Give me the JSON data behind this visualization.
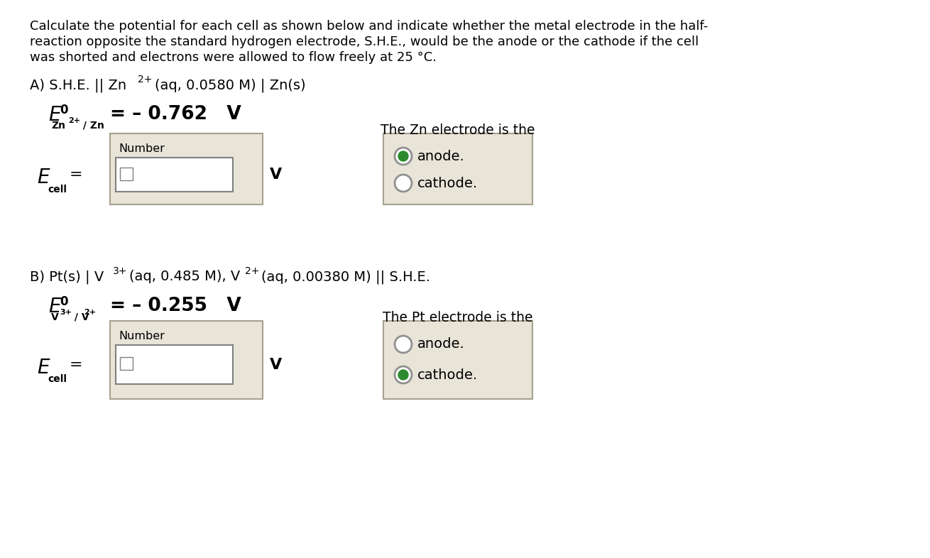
{
  "bg_color": "#ffffff",
  "text_color": "#000000",
  "box_bg": "#e8e4d8",
  "box_inner_bg": "#ffffff",
  "radio_box_bg": "#e8e4d8",
  "selected_color": "#2d8a2d",
  "number_label": "Number",
  "V_label": "V",
  "header_line1": "Calculate the potential for each cell as shown below and indicate whether the metal electrode in the half-",
  "header_line2": "reaction opposite the standard hydrogen electrode, S.H.E., would be the anode or the cathode if the cell",
  "header_line3": "was shorted and electrons were allowed to flow freely at 25 °C.",
  "secA_line": "A) S.H.E. || Zn",
  "secA_sup": "2+",
  "secA_rest": "(aq, 0.0580 M) | Zn(s)",
  "secA_E0_val": "= – 0.762   V",
  "secA_radio_title": "The Zn electrode is the",
  "secA_radio1": "anode.",
  "secA_radio2": "cathode.",
  "secA_radio1_sel": true,
  "secA_radio2_sel": false,
  "secB_line": "B) Pt(s) | V",
  "secB_sup1": "3+",
  "secB_mid": "(aq, 0.485 M), V",
  "secB_sup2": "2+",
  "secB_rest": "(aq, 0.00380 M) || S.H.E.",
  "secB_E0_val": "= – 0.255   V",
  "secB_radio_title": "The Pt electrode is the",
  "secB_radio1": "anode.",
  "secB_radio2": "cathode.",
  "secB_radio1_sel": false,
  "secB_radio2_sel": true
}
